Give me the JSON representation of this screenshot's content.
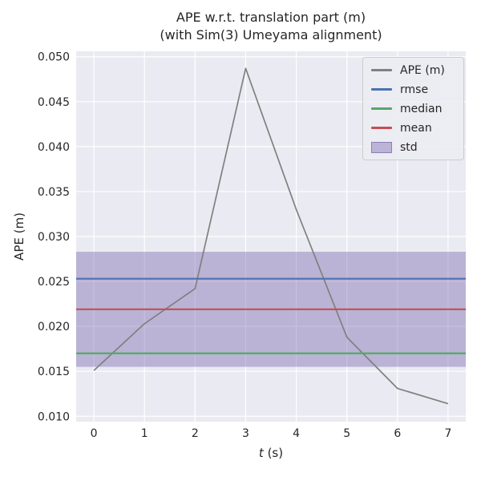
{
  "chart_data": {
    "type": "line",
    "title_line1": "APE w.r.t. translation part (m)",
    "title_line2": "(with Sim(3) Umeyama alignment)",
    "xlabel_italic": "t",
    "xlabel_rest": " (s)",
    "ylabel": "APE (m)",
    "x": [
      0,
      1,
      2,
      3,
      4,
      5,
      6,
      7
    ],
    "series": [
      {
        "name": "APE (m)",
        "color": "#808080",
        "values": [
          0.0151,
          0.0203,
          0.0242,
          0.0487,
          0.033,
          0.0188,
          0.0131,
          0.0114
        ]
      }
    ],
    "stat_lines": [
      {
        "name": "rmse",
        "color": "#4c72b0",
        "value": 0.0253
      },
      {
        "name": "median",
        "color": "#55a868",
        "value": 0.017
      },
      {
        "name": "mean",
        "color": "#c44e52",
        "value": 0.0219
      }
    ],
    "std_band": {
      "name": "std",
      "color": "#8172b2",
      "lo": 0.0155,
      "hi": 0.0283
    },
    "xlim": [
      -0.35,
      7.35
    ],
    "ylim": [
      0.0094,
      0.0506
    ],
    "xticks": [
      0,
      1,
      2,
      3,
      4,
      5,
      6,
      7
    ],
    "xtick_labels": [
      "0",
      "1",
      "2",
      "3",
      "4",
      "5",
      "6",
      "7"
    ],
    "yticks": [
      0.01,
      0.015,
      0.02,
      0.025,
      0.03,
      0.035,
      0.04,
      0.045,
      0.05
    ],
    "ytick_labels": [
      "0.010",
      "0.015",
      "0.020",
      "0.025",
      "0.030",
      "0.035",
      "0.040",
      "0.045",
      "0.050"
    ],
    "grid": true,
    "legend_position": "upper right",
    "axes_bg": "#eaeaf2",
    "grid_color": "#ffffff"
  },
  "legend": {
    "entries": [
      {
        "label": "APE (m)",
        "type": "line",
        "color": "#808080"
      },
      {
        "label": "rmse",
        "type": "line",
        "color": "#4c72b0"
      },
      {
        "label": "median",
        "type": "line",
        "color": "#55a868"
      },
      {
        "label": "mean",
        "type": "line",
        "color": "#c44e52"
      },
      {
        "label": "std",
        "type": "patch",
        "color": "#8172b2"
      }
    ]
  }
}
